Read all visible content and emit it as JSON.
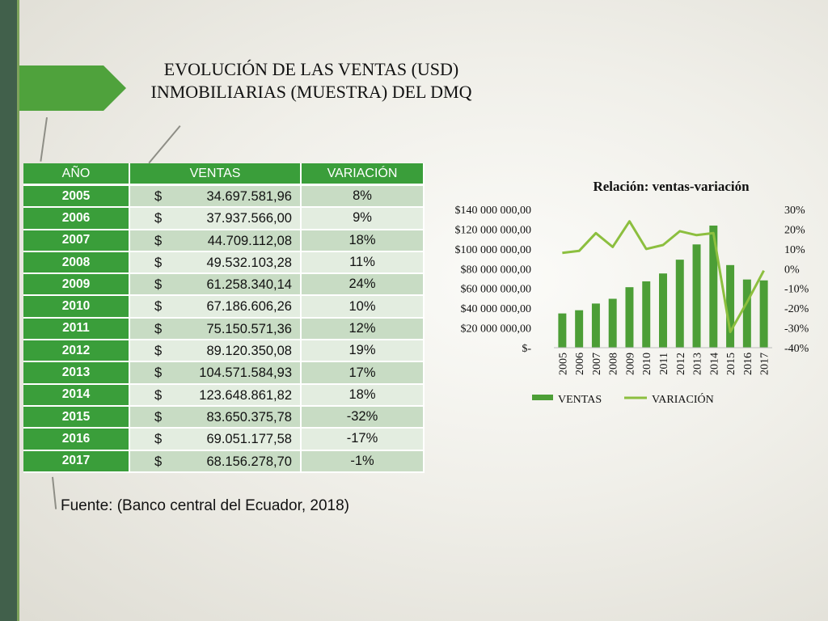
{
  "title_line1": "EVOLUCIÓN DE LAS VENTAS (USD)",
  "title_line2": "INMOBILIARIAS (MUESTRA) DEL DMQ",
  "table": {
    "headers": [
      "AÑO",
      "VENTAS",
      "VARIACIÓN"
    ],
    "currency": "$",
    "rows": [
      {
        "year": "2005",
        "ventas": "34.697.581,96",
        "variacion": "8%"
      },
      {
        "year": "2006",
        "ventas": "37.937.566,00",
        "variacion": "9%"
      },
      {
        "year": "2007",
        "ventas": "44.709.112,08",
        "variacion": "18%"
      },
      {
        "year": "2008",
        "ventas": "49.532.103,28",
        "variacion": "11%"
      },
      {
        "year": "2009",
        "ventas": "61.258.340,14",
        "variacion": "24%"
      },
      {
        "year": "2010",
        "ventas": "67.186.606,26",
        "variacion": "10%"
      },
      {
        "year": "2011",
        "ventas": "75.150.571,36",
        "variacion": "12%"
      },
      {
        "year": "2012",
        "ventas": "89.120.350,08",
        "variacion": "19%"
      },
      {
        "year": "2013",
        "ventas": "104.571.584,93",
        "variacion": "17%"
      },
      {
        "year": "2014",
        "ventas": "123.648.861,82",
        "variacion": "18%"
      },
      {
        "year": "2015",
        "ventas": "83.650.375,78",
        "variacion": "-32%"
      },
      {
        "year": "2016",
        "ventas": "69.051.177,58",
        "variacion": "-17%"
      },
      {
        "year": "2017",
        "ventas": "68.156.278,70",
        "variacion": "-1%"
      }
    ]
  },
  "source": "Fuente: (Banco central del Ecuador, 2018)",
  "chart_data": {
    "type": "bar",
    "title": "Relación: ventas-variación",
    "categories": [
      "2005",
      "2006",
      "2007",
      "2008",
      "2009",
      "2010",
      "2011",
      "2012",
      "2013",
      "2014",
      "2015",
      "2016",
      "2017"
    ],
    "series": [
      {
        "name": "VENTAS",
        "type": "bar",
        "axis": "left",
        "color": "#4c9e36",
        "values": [
          34697581.96,
          37937566.0,
          44709112.08,
          49532103.28,
          61258340.14,
          67186606.26,
          75150571.36,
          89120350.08,
          104571584.93,
          123648861.82,
          83650375.78,
          69051177.58,
          68156278.7
        ]
      },
      {
        "name": "VARIACIÓN",
        "type": "line",
        "axis": "right",
        "color": "#8cbf3f",
        "values": [
          8,
          9,
          18,
          11,
          24,
          10,
          12,
          19,
          17,
          18,
          -32,
          -17,
          -1
        ]
      }
    ],
    "ylim_left": [
      0,
      140000000
    ],
    "yticks_left": [
      "$-",
      "$20 000 000,00",
      "$40 000 000,00",
      "$60 000 000,00",
      "$80 000 000,00",
      "$100 000 000,00",
      "$120 000 000,00",
      "$140 000 000,00"
    ],
    "ylim_right": [
      -40,
      30
    ],
    "yticks_right": [
      "-40%",
      "-30%",
      "-20%",
      "-10%",
      "0%",
      "10%",
      "20%",
      "30%"
    ],
    "grid": false,
    "legend_position": "bottom"
  }
}
